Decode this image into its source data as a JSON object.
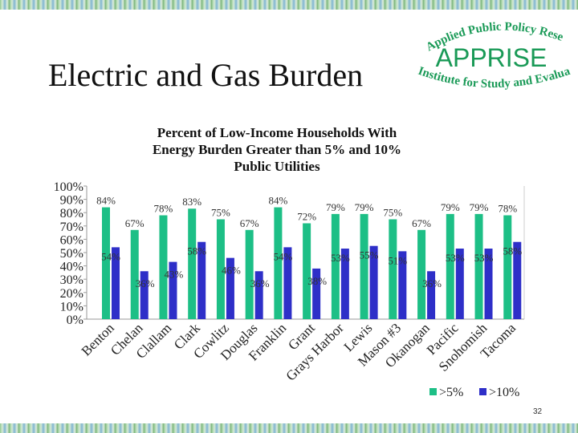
{
  "slide": {
    "title": "Electric and Gas Burden",
    "page_number": "32"
  },
  "logo": {
    "top_text": "Applied Public Policy Research",
    "main_text": "APPRISE",
    "bottom_text": "Institute for Study and Evaluation",
    "color": "#1a9a57"
  },
  "chart_data": {
    "type": "bar",
    "title_lines": [
      "Percent of Low-Income Households With",
      "Energy Burden Greater than 5% and 10%",
      "Public Utilities"
    ],
    "categories": [
      "Benton",
      "Chelan",
      "Clallam",
      "Clark",
      "Cowlitz",
      "Douglas",
      "Franklin",
      "Grant",
      "Grays Harbor",
      "Lewis",
      "Mason #3",
      "Okanogan",
      "Pacific",
      "Snohomish",
      "Tacoma"
    ],
    "series": [
      {
        "name": ">5%",
        "color": "#1dbf86",
        "values": [
          84,
          67,
          78,
          83,
          75,
          67,
          84,
          72,
          79,
          79,
          75,
          67,
          79,
          79,
          78
        ]
      },
      {
        "name": ">10%",
        "color": "#2e2fc8",
        "values": [
          54,
          36,
          43,
          58,
          46,
          36,
          54,
          38,
          53,
          55,
          51,
          36,
          53,
          53,
          58
        ]
      }
    ],
    "ylim": [
      0,
      100
    ],
    "yticks": [
      "0%",
      "10%",
      "20%",
      "30%",
      "40%",
      "50%",
      "60%",
      "70%",
      "80%",
      "90%",
      "100%"
    ],
    "value_suffix": "%",
    "grid": false,
    "legend_position": "bottom-right"
  }
}
